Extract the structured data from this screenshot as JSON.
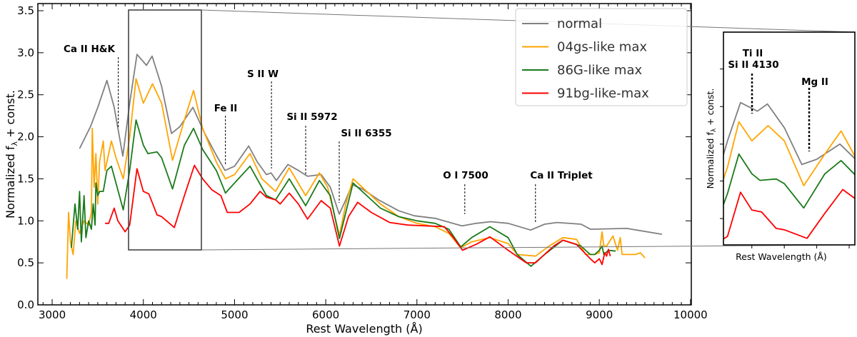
{
  "chart_data": {
    "type": "line",
    "xlabel": "Rest Wavelength (Å)",
    "ylabel_main": "Normalized f",
    "ylabel_sub": "λ",
    "ylabel_rest": " + const.",
    "xlim": [
      2843,
      10009
    ],
    "ylim": [
      0,
      3.585
    ],
    "xticks": [
      3000,
      4000,
      5000,
      6000,
      7000,
      8000,
      9000,
      10000
    ],
    "xtick_labels": [
      "3000",
      "4000",
      "5000",
      "6000",
      "7000",
      "8000",
      "9000",
      "10000"
    ],
    "yticks": [
      0,
      0.5,
      1,
      1.5,
      2,
      2.5,
      3,
      3.5
    ],
    "ytick_labels": [
      "0.0",
      "0.5",
      "1.0",
      "1.5",
      "2.0",
      "2.5",
      "3.0",
      "3.5"
    ],
    "grid": false,
    "legend_placement": "top-right",
    "series": [
      {
        "name": "normal",
        "color": "#808080",
        "x": [
          3300,
          3420,
          3500,
          3600,
          3680,
          3775,
          3850,
          3930,
          4034,
          4096,
          4200,
          4308,
          4400,
          4543,
          4673,
          4800,
          4895,
          5000,
          5155,
          5250,
          5350,
          5400,
          5459,
          5585,
          5700,
          5800,
          5950,
          6050,
          6148,
          6220,
          6289,
          6400,
          6579,
          6800,
          6970,
          7200,
          7495,
          7650,
          7808,
          8000,
          8247,
          8400,
          8536,
          8800,
          8904,
          9300,
          9687
        ],
        "y": [
          1.86,
          2.12,
          2.35,
          2.67,
          2.35,
          1.77,
          2.4,
          2.98,
          2.85,
          2.96,
          2.6,
          2.04,
          2.12,
          2.35,
          2.04,
          1.78,
          1.6,
          1.65,
          1.89,
          1.7,
          1.55,
          1.57,
          1.48,
          1.67,
          1.6,
          1.53,
          1.55,
          1.4,
          1.08,
          1.25,
          1.43,
          1.38,
          1.25,
          1.12,
          1.06,
          1.03,
          0.94,
          0.97,
          0.99,
          0.97,
          0.89,
          0.96,
          0.98,
          0.96,
          0.9,
          0.91,
          0.84
        ]
      },
      {
        "name": "04gs-like max",
        "color": "#ffa500",
        "x": [
          3160,
          3180,
          3200,
          3230,
          3260,
          3300,
          3350,
          3400,
          3430,
          3440,
          3460,
          3480,
          3500,
          3520,
          3560,
          3580,
          3650,
          3700,
          3780,
          3850,
          3920,
          4000,
          4100,
          4200,
          4320,
          4450,
          4550,
          4650,
          4800,
          4900,
          5000,
          5170,
          5300,
          5450,
          5600,
          5780,
          5930,
          6020,
          6150,
          6220,
          6300,
          6400,
          6600,
          6800,
          7000,
          7200,
          7350,
          7480,
          7600,
          7800,
          8000,
          8100,
          8300,
          8450,
          8600,
          8750,
          8850,
          8950,
          9000,
          9030,
          9050,
          9080,
          9150,
          9200,
          9230,
          9250,
          9300,
          9400,
          9450,
          9500
        ],
        "y": [
          0.31,
          1.1,
          0.75,
          0.6,
          1.0,
          0.85,
          1.0,
          0.95,
          1.1,
          2.1,
          1.4,
          1.8,
          1.2,
          1.7,
          1.95,
          1.6,
          1.95,
          1.75,
          1.5,
          2.0,
          2.69,
          2.4,
          2.63,
          2.4,
          1.72,
          2.2,
          2.55,
          2.1,
          1.7,
          1.5,
          1.55,
          1.8,
          1.5,
          1.35,
          1.63,
          1.3,
          1.57,
          1.4,
          0.83,
          1.2,
          1.5,
          1.4,
          1.2,
          1.05,
          0.97,
          0.93,
          0.85,
          0.68,
          0.75,
          0.8,
          0.73,
          0.6,
          0.58,
          0.7,
          0.8,
          0.78,
          0.6,
          0.6,
          0.62,
          0.87,
          0.7,
          0.7,
          0.82,
          0.65,
          0.8,
          0.6,
          0.6,
          0.6,
          0.62,
          0.56
        ]
      },
      {
        "name": "86G-like max",
        "color": "#1a7a1a",
        "x": [
          3210,
          3250,
          3280,
          3300,
          3320,
          3350,
          3370,
          3400,
          3430,
          3450,
          3470,
          3480,
          3500,
          3520,
          3560,
          3600,
          3650,
          3700,
          3780,
          3850,
          3920,
          4000,
          4050,
          4150,
          4200,
          4320,
          4450,
          4550,
          4650,
          4800,
          4900,
          5000,
          5170,
          5350,
          5450,
          5600,
          5780,
          5930,
          6050,
          6150,
          6220,
          6300,
          6400,
          6600,
          6800,
          7000,
          7200,
          7350,
          7480,
          7600,
          7800,
          8000,
          8100,
          8250,
          8400,
          8600,
          8800,
          8900,
          8950,
          9000,
          9030,
          9050,
          9100,
          9180
        ],
        "y": [
          0.68,
          1.2,
          0.9,
          1.35,
          0.75,
          1.3,
          0.8,
          1.0,
          0.9,
          1.2,
          0.95,
          1.45,
          1.3,
          1.35,
          1.35,
          1.6,
          1.65,
          1.45,
          1.13,
          1.6,
          2.2,
          1.9,
          1.8,
          1.82,
          1.75,
          1.38,
          1.9,
          2.1,
          1.85,
          1.6,
          1.33,
          1.45,
          1.65,
          1.3,
          1.25,
          1.5,
          1.18,
          1.48,
          1.3,
          0.79,
          1.1,
          1.45,
          1.35,
          1.15,
          1.05,
          1.0,
          0.97,
          0.9,
          0.69,
          0.8,
          0.93,
          0.8,
          0.6,
          0.46,
          0.6,
          0.77,
          0.7,
          0.6,
          0.6,
          0.65,
          0.7,
          0.6,
          0.65,
          0.64
        ]
      },
      {
        "name": "91bg-like-max",
        "color": "#ff0000",
        "x": [
          3580,
          3620,
          3680,
          3720,
          3800,
          3850,
          3930,
          4000,
          4060,
          4150,
          4200,
          4340,
          4450,
          4560,
          4650,
          4750,
          4850,
          4920,
          5050,
          5170,
          5280,
          5350,
          5450,
          5500,
          5600,
          5700,
          5800,
          5950,
          6050,
          6150,
          6250,
          6350,
          6500,
          6700,
          6900,
          7300,
          7400,
          7500,
          7650,
          7800,
          8000,
          8200,
          8300,
          8500,
          8600,
          8750,
          8900,
          8950,
          9000,
          9030,
          9060,
          9080,
          9100,
          9120
        ],
        "y": [
          0.97,
          0.97,
          1.15,
          1.0,
          0.87,
          0.95,
          1.62,
          1.35,
          1.32,
          1.07,
          1.05,
          0.92,
          1.3,
          1.66,
          1.5,
          1.37,
          1.3,
          1.1,
          1.1,
          1.2,
          1.35,
          1.28,
          1.25,
          1.2,
          1.33,
          1.2,
          1.02,
          1.24,
          1.15,
          0.7,
          1.05,
          1.22,
          1.1,
          0.98,
          0.95,
          0.93,
          0.8,
          0.65,
          0.72,
          0.81,
          0.65,
          0.5,
          0.5,
          0.7,
          0.77,
          0.72,
          0.55,
          0.5,
          0.55,
          0.48,
          0.62,
          0.58,
          0.66,
          0.58
        ]
      }
    ],
    "annotations": [
      {
        "label": "Ca II H&K",
        "x": 3725
      },
      {
        "label": "Fe II",
        "x": 4900
      },
      {
        "label": "S II W",
        "x": 5405
      },
      {
        "label": "Si II 5972",
        "x": 5780
      },
      {
        "label": "Si II 6355",
        "x": 6148
      },
      {
        "label": "O I 7500",
        "x": 7525
      },
      {
        "label": "Ca II Triplet",
        "x": 8300
      }
    ],
    "inset": {
      "xlim": [
        3825,
        4635
      ],
      "ylim": [
        0.82,
        4.05
      ],
      "xlabel": "Rest Wavelength (Å)",
      "ylabel_main": "Normalized f",
      "ylabel_sub": "λ",
      "ylabel_rest": " + const.",
      "annotations": [
        {
          "label_line1": "Ti II",
          "label_line2": "Si II 4130",
          "x": 4000
        },
        {
          "label": "Mg II",
          "x": 4345
        }
      ]
    }
  }
}
